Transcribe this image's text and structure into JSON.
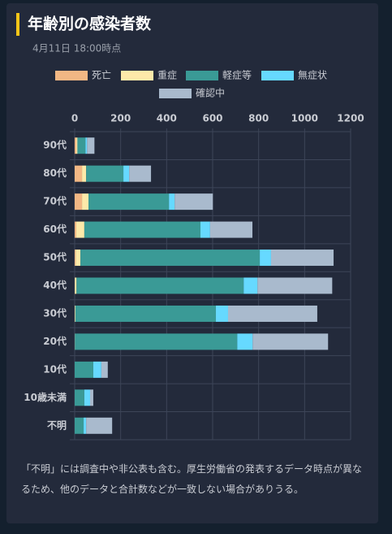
{
  "chart_data": {
    "type": "bar",
    "orientation": "horizontal",
    "stacked": true,
    "title": "年齢別の感染者数",
    "subtitle": "4月11日 18:00時点",
    "categories": [
      "90代",
      "80代",
      "70代",
      "60代",
      "50代",
      "40代",
      "30代",
      "20代",
      "10代",
      "10歳未満",
      "不明"
    ],
    "series": [
      {
        "name": "死亡",
        "color": "#f2b784",
        "values": [
          7,
          32,
          32,
          7,
          4,
          1,
          0,
          0,
          0,
          0,
          0
        ]
      },
      {
        "name": "重症",
        "color": "#fde9a9",
        "values": [
          5,
          18,
          28,
          35,
          21,
          7,
          3,
          1,
          0,
          0,
          0
        ]
      },
      {
        "name": "軽症等",
        "color": "#3a9a96",
        "values": [
          35,
          162,
          350,
          505,
          780,
          727,
          611,
          706,
          81,
          42,
          39
        ]
      },
      {
        "name": "無症状",
        "color": "#66d9ff",
        "values": [
          7,
          25,
          25,
          42,
          49,
          60,
          53,
          67,
          35,
          25,
          11
        ]
      },
      {
        "name": "確認中",
        "color": "#a9bacd",
        "values": [
          32,
          95,
          166,
          184,
          272,
          325,
          388,
          328,
          28,
          14,
          113
        ]
      }
    ],
    "xlim": [
      0,
      1200
    ],
    "xticks": [
      0,
      200,
      400,
      600,
      800,
      1000,
      1200
    ],
    "grid": true,
    "legend": "top",
    "note": "「不明」には調査中や非公表も含む。厚生労働省の発表するデータ時点が異なるため、他のデータと合計数などが一致しない場合がありうる。"
  }
}
